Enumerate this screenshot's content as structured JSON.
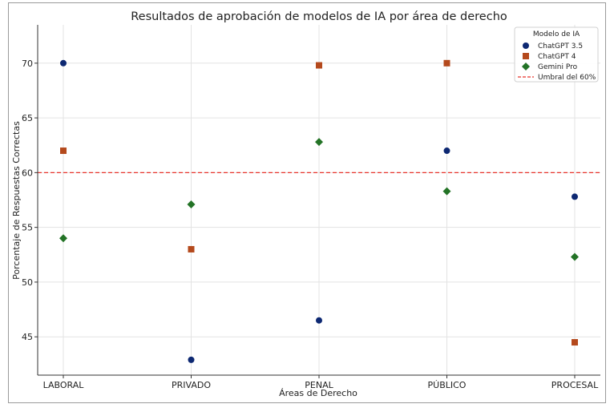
{
  "chart_data": {
    "type": "scatter",
    "title": "Resultados de aprobación de modelos de IA por área de derecho",
    "xlabel": "Áreas de Derecho",
    "ylabel": "Porcentaje de Respuestas Correctas",
    "categories": [
      "LABORAL",
      "PRIVADO",
      "PENAL",
      "PÚBLICO",
      "PROCESAL"
    ],
    "ylim": [
      41.5,
      73.5
    ],
    "yticks": [
      45,
      50,
      55,
      60,
      65,
      70
    ],
    "grid": true,
    "legend": {
      "title": "Modelo de IA",
      "placement": "top-right"
    },
    "series": [
      {
        "name": "ChatGPT 3.5",
        "marker": "circle",
        "color": "#0d2872",
        "values": [
          70.0,
          42.9,
          46.5,
          62.0,
          57.8
        ]
      },
      {
        "name": "ChatGPT 4",
        "marker": "square",
        "color": "#b4491c",
        "values": [
          62.0,
          53.0,
          69.8,
          70.0,
          44.5
        ]
      },
      {
        "name": "Gemini Pro",
        "marker": "diamond",
        "color": "#237326",
        "values": [
          54.0,
          57.1,
          62.8,
          58.3,
          52.3
        ]
      }
    ],
    "threshold": {
      "name": "Umbral del 60%",
      "value": 60,
      "color": "#e8332a"
    }
  }
}
